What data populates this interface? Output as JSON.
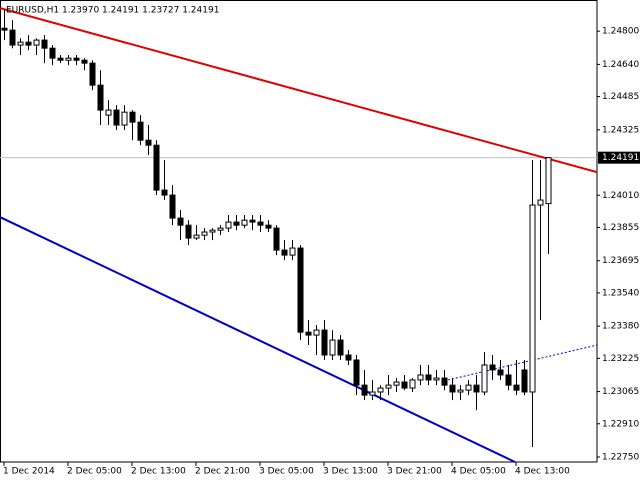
{
  "chart_data": {
    "type": "candlestick",
    "title": "EURUSD,H1  1.23970 1.24191 1.23727 1.24191",
    "categories": [
      "1 Dec 2014",
      null,
      null,
      null,
      null,
      null,
      null,
      null,
      "2 Dec 05:00",
      null,
      null,
      null,
      null,
      null,
      null,
      null,
      "2 Dec 13:00",
      null,
      null,
      null,
      null,
      null,
      null,
      null,
      "2 Dec 21:00",
      null,
      null,
      null,
      null,
      null,
      null,
      null,
      "3 Dec 05:00",
      null,
      null,
      null,
      null,
      null,
      null,
      null,
      "3 Dec 13:00",
      null,
      null,
      null,
      null,
      null,
      null,
      null,
      "3 Dec 21:00",
      null,
      null,
      null,
      null,
      null,
      null,
      null,
      "4 Dec 05:00",
      null,
      null,
      null,
      null,
      null,
      null,
      null,
      "4 Dec 13:00",
      null,
      null,
      null,
      null
    ],
    "open": [
      1.24814,
      1.24805,
      1.24733,
      1.24747,
      1.24733,
      1.24757,
      1.24718,
      1.2467,
      1.2466,
      1.2467,
      1.2466,
      1.24646,
      1.2454,
      1.24396,
      1.2442,
      1.24348,
      1.2441,
      1.24362,
      1.24275,
      1.24251,
      1.24035,
      1.24011,
      1.239,
      1.23866,
      1.23804,
      1.23818,
      1.23833,
      1.23842,
      1.23852,
      1.23881,
      1.23866,
      1.2389,
      1.23881,
      1.23866,
      1.23852,
      1.23746,
      1.23722,
      1.23756,
      1.23351,
      1.23337,
      1.23361,
      1.23241,
      1.23313,
      1.23241,
      1.23217,
      1.23096,
      1.23048,
      1.23063,
      1.23082,
      1.23096,
      1.23111,
      1.23082,
      1.23121,
      1.23145,
      1.23121,
      1.2313,
      1.23096,
      1.23063,
      1.23072,
      1.23096,
      1.23063,
      1.23193,
      1.23169,
      1.23145,
      1.23096,
      1.23169,
      1.23063,
      1.23963,
      1.2397
    ],
    "high": [
      1.24901,
      1.24853,
      1.24766,
      1.24781,
      1.24766,
      1.24781,
      1.24733,
      1.24685,
      1.24685,
      1.24685,
      1.2467,
      1.2466,
      1.24612,
      1.24468,
      1.24444,
      1.24444,
      1.2442,
      1.24396,
      1.24348,
      1.24275,
      1.24179,
      1.24059,
      1.23939,
      1.2389,
      1.23866,
      1.23852,
      1.23852,
      1.23866,
      1.23915,
      1.23915,
      1.23915,
      1.23915,
      1.23915,
      1.2389,
      1.23866,
      1.23794,
      1.23794,
      1.2377,
      1.23409,
      1.23385,
      1.23409,
      1.23361,
      1.23337,
      1.23265,
      1.23241,
      1.23169,
      1.23121,
      1.23096,
      1.23145,
      1.2313,
      1.23145,
      1.2313,
      1.23193,
      1.23193,
      1.23169,
      1.23169,
      1.2313,
      1.23096,
      1.23121,
      1.23145,
      1.23255,
      1.23241,
      1.23217,
      1.23193,
      1.23217,
      1.23217,
      1.24179,
      1.24179,
      1.24191
    ],
    "low": [
      1.24757,
      1.24718,
      1.24685,
      1.24709,
      1.24685,
      1.24646,
      1.24636,
      1.24646,
      1.24636,
      1.24636,
      1.24612,
      1.24516,
      1.24348,
      1.24348,
      1.24324,
      1.24324,
      1.24275,
      1.24251,
      1.24203,
      1.24011,
      1.23987,
      1.23866,
      1.23794,
      1.2377,
      1.23794,
      1.23794,
      1.23794,
      1.23818,
      1.23833,
      1.23842,
      1.23852,
      1.23842,
      1.23833,
      1.23833,
      1.23722,
      1.23698,
      1.23698,
      1.23313,
      1.23289,
      1.23241,
      1.23217,
      1.23217,
      1.23217,
      1.23193,
      1.23048,
      1.23024,
      1.23024,
      1.23024,
      1.23048,
      1.23063,
      1.23072,
      1.23063,
      1.23096,
      1.23096,
      1.23096,
      1.23072,
      1.23024,
      1.23024,
      1.23048,
      1.22976,
      1.23048,
      1.23121,
      1.23121,
      1.23072,
      1.23048,
      1.23048,
      1.22798,
      1.23409,
      1.23727
    ],
    "close": [
      1.24805,
      1.24733,
      1.24747,
      1.24733,
      1.24757,
      1.24718,
      1.2467,
      1.2466,
      1.2467,
      1.2466,
      1.24646,
      1.2454,
      1.2442,
      1.2442,
      1.24348,
      1.2441,
      1.24362,
      1.24275,
      1.24251,
      1.24035,
      1.24011,
      1.239,
      1.23866,
      1.23804,
      1.23818,
      1.23833,
      1.23842,
      1.23852,
      1.23881,
      1.23866,
      1.2389,
      1.23881,
      1.23866,
      1.23852,
      1.23746,
      1.23722,
      1.23756,
      1.23351,
      1.23337,
      1.23361,
      1.23241,
      1.23313,
      1.23241,
      1.23217,
      1.23096,
      1.23048,
      1.23063,
      1.23082,
      1.23096,
      1.23111,
      1.23082,
      1.23121,
      1.23145,
      1.23121,
      1.2313,
      1.23096,
      1.23063,
      1.23072,
      1.23096,
      1.23063,
      1.23193,
      1.23169,
      1.23145,
      1.23096,
      1.23072,
      1.23063,
      1.23963,
      1.23987,
      1.24191
    ],
    "ylim": [
      1.22726,
      1.2495
    ],
    "yticks": [
      {
        "value": 1.248,
        "label": "1.24800"
      },
      {
        "value": 1.2464,
        "label": "1.24640"
      },
      1.24485,
      1.24325,
      {
        "value": 1.2401,
        "label": "1.24010"
      },
      1.23855,
      1.23695,
      {
        "value": 1.2354,
        "label": "1.23540"
      },
      {
        "value": 1.2338,
        "label": "1.23380"
      },
      1.23225,
      1.23065,
      {
        "value": 1.2291,
        "label": "1.22910"
      },
      {
        "value": 1.2275,
        "label": "1.22750"
      }
    ],
    "current_price": 1.24191,
    "trendlines": [
      {
        "color": "#e00000",
        "style": "solid",
        "x": [
          -0.5,
          74.125
        ],
        "values": [
          1.24911,
          1.24121
        ]
      },
      {
        "color": "#0000c8",
        "style": "solid",
        "x": [
          -0.5,
          63.875
        ],
        "values": [
          1.23905,
          1.22726
        ]
      },
      {
        "color": "#0000c8",
        "style": "dotted",
        "x": [
          55.5,
          74.125
        ],
        "values": [
          1.23121,
          1.23289
        ]
      }
    ]
  }
}
